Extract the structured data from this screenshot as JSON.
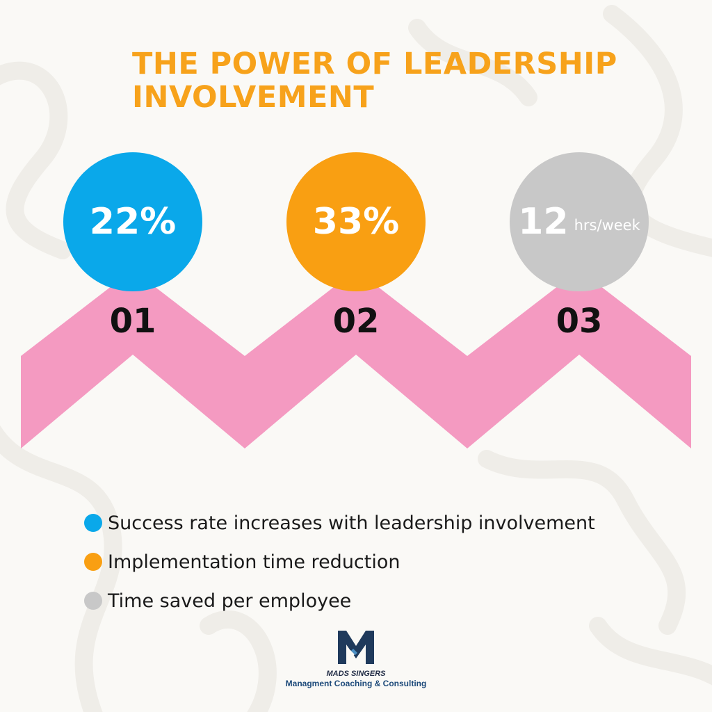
{
  "title": {
    "line1": "THE POWER OF LEADERSHIP",
    "line2": "INVOLVEMENT"
  },
  "colors": {
    "title": "#f7a21b",
    "blue": "#0aa8ea",
    "orange": "#f99f12",
    "gray": "#c8c8c8",
    "zigzag": "#f49ac1",
    "logo_navy": "#1f3a5c"
  },
  "stats": [
    {
      "value": "22%",
      "unit": "",
      "step": "01",
      "color": "#0aa8ea"
    },
    {
      "value": "33%",
      "unit": "",
      "step": "02",
      "color": "#f99f12"
    },
    {
      "value": "12",
      "unit": "hrs/week",
      "step": "03",
      "color": "#c8c8c8"
    }
  ],
  "legend": [
    {
      "label": "Success rate increases with leadership involvement",
      "color": "#0aa8ea"
    },
    {
      "label": "Implementation time reduction",
      "color": "#f99f12"
    },
    {
      "label": "Time saved per employee",
      "color": "#c8c8c8"
    }
  ],
  "logo": {
    "icon": "m-monogram-logo",
    "name": "MADS SINGERS",
    "tagline": "Managment Coaching & Consulting"
  }
}
